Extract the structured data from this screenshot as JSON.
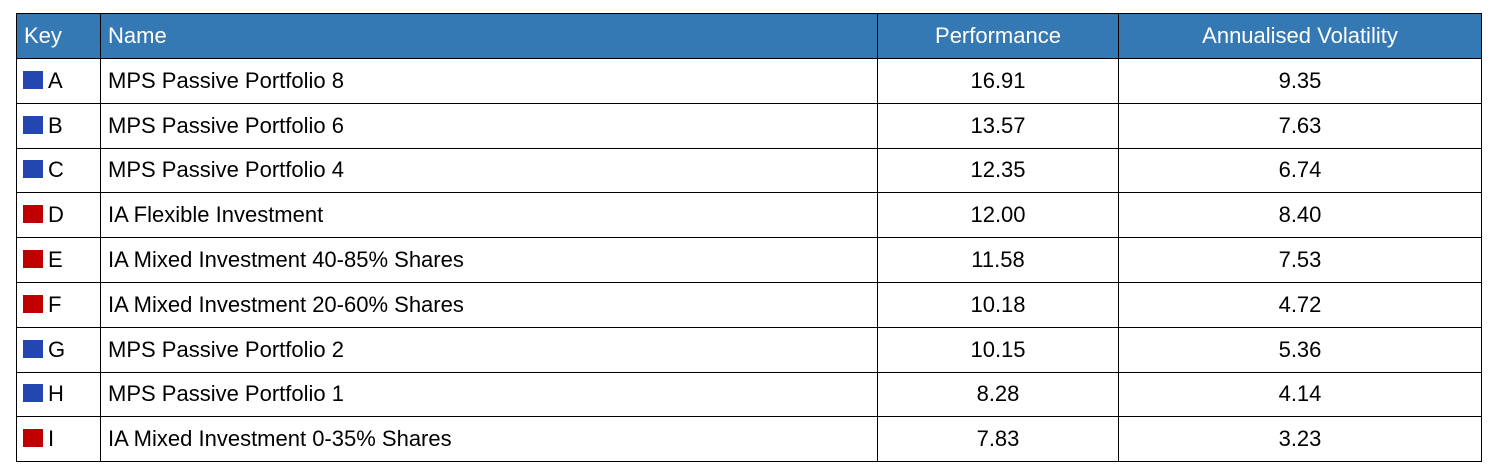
{
  "colors": {
    "header_bg": "#3478b4",
    "mps": "#2446b0",
    "ia": "#c00000"
  },
  "headers": {
    "key": "Key",
    "name": "Name",
    "performance": "Performance",
    "volatility": "Annualised Volatility"
  },
  "rows": [
    {
      "key": "A",
      "color": "#2446b0",
      "name": "MPS Passive Portfolio 8",
      "performance": "16.91",
      "volatility": "9.35"
    },
    {
      "key": "B",
      "color": "#2446b0",
      "name": "MPS Passive Portfolio 6",
      "performance": "13.57",
      "volatility": "7.63"
    },
    {
      "key": "C",
      "color": "#2446b0",
      "name": "MPS Passive Portfolio 4",
      "performance": "12.35",
      "volatility": "6.74"
    },
    {
      "key": "D",
      "color": "#c00000",
      "name": "IA Flexible Investment",
      "performance": "12.00",
      "volatility": "8.40"
    },
    {
      "key": "E",
      "color": "#c00000",
      "name": "IA Mixed Investment 40-85% Shares",
      "performance": "11.58",
      "volatility": "7.53"
    },
    {
      "key": "F",
      "color": "#c00000",
      "name": "IA Mixed Investment 20-60% Shares",
      "performance": "10.18",
      "volatility": "4.72"
    },
    {
      "key": "G",
      "color": "#2446b0",
      "name": "MPS Passive Portfolio 2",
      "performance": "10.15",
      "volatility": "5.36"
    },
    {
      "key": "H",
      "color": "#2446b0",
      "name": "MPS Passive Portfolio 1",
      "performance": "8.28",
      "volatility": "4.14"
    },
    {
      "key": "I",
      "color": "#c00000",
      "name": "IA Mixed Investment 0-35% Shares",
      "performance": "7.83",
      "volatility": "3.23"
    }
  ]
}
